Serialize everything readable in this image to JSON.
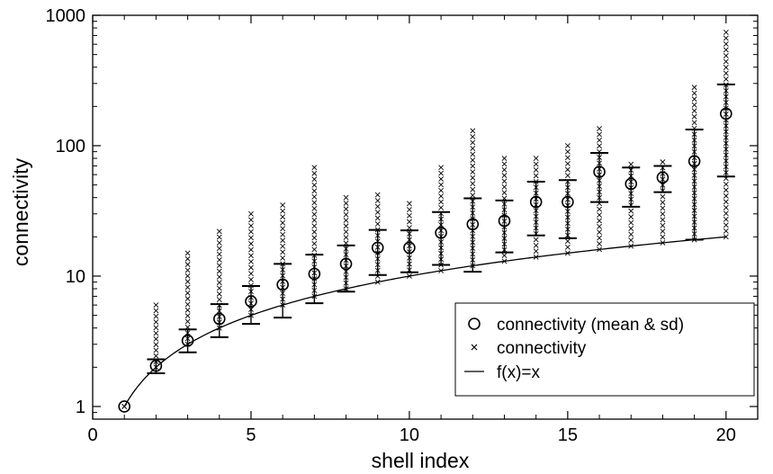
{
  "chart_data": {
    "type": "scatter",
    "xlabel": "shell index",
    "ylabel": "connectivity",
    "x_scale": "linear",
    "y_scale": "log",
    "xlim": [
      0,
      21
    ],
    "ylim": [
      0.8,
      1000
    ],
    "x_ticks": [
      "0",
      "5",
      "10",
      "15",
      "20"
    ],
    "y_ticks": [
      "1",
      "10",
      "100",
      "1000"
    ],
    "grid": false,
    "legend_position": "bottom-right",
    "legend": [
      "connectivity (mean & sd)",
      "connectivity",
      "f(x)=x"
    ],
    "series": [
      {
        "name": "connectivity (mean & sd)",
        "marker": "open-circle",
        "x": [
          1,
          2,
          3,
          4,
          5,
          6,
          7,
          8,
          9,
          10,
          11,
          12,
          13,
          14,
          15,
          16,
          17,
          18,
          19,
          20
        ],
        "mean": [
          1,
          2.05,
          3.2,
          4.7,
          6.4,
          8.6,
          10.4,
          12.4,
          16.5,
          16.5,
          21.5,
          25,
          26.5,
          37,
          37,
          63,
          51,
          57,
          76,
          176
        ],
        "sd_low": [
          1,
          1.8,
          2.6,
          3.4,
          4.3,
          4.8,
          6.2,
          7.6,
          10.2,
          10.7,
          12.2,
          10.8,
          15.2,
          20.5,
          19.5,
          37,
          34,
          44,
          19,
          58
        ],
        "sd_high": [
          1,
          2.3,
          3.9,
          6.1,
          8.4,
          12.4,
          14.6,
          17.2,
          22.6,
          22.4,
          31,
          39.5,
          38,
          53,
          54.5,
          88,
          68,
          70,
          133,
          295
        ]
      },
      {
        "name": "connectivity",
        "marker": "x",
        "x": [
          1,
          2,
          3,
          4,
          5,
          6,
          7,
          8,
          9,
          10,
          11,
          12,
          13,
          14,
          15,
          16,
          17,
          18,
          19,
          20
        ],
        "min": [
          1,
          2,
          3,
          4,
          5,
          6,
          7,
          8,
          9,
          10,
          11,
          12,
          13,
          14,
          15,
          16,
          17,
          18,
          19,
          20
        ],
        "max": [
          1,
          6,
          15,
          22,
          30,
          35,
          68,
          40,
          42,
          36,
          68,
          130,
          80,
          80,
          100,
          135,
          72,
          75,
          280,
          740
        ]
      },
      {
        "name": "f(x)=x",
        "style": "line",
        "x_range": [
          1,
          20
        ]
      }
    ]
  }
}
